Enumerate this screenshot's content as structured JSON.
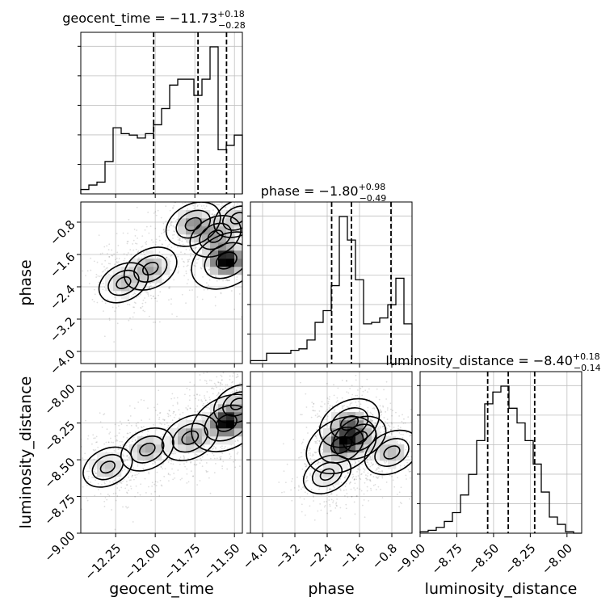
{
  "chart_data": {
    "type": "corner",
    "parameters": [
      {
        "key": "geocent_time",
        "label": "geocent_time",
        "range": [
          -12.47,
          -11.45
        ],
        "ticks": [
          -12.25,
          -12.0,
          -11.75,
          -11.5
        ],
        "tick_labels": [
          "−12.25",
          "−12.00",
          "−11.75",
          "−11.50"
        ],
        "title_main": "geocent_time = −11.73",
        "title_plus": "+0.18",
        "title_minus": "−0.28",
        "quantiles": [
          -12.01,
          -11.73,
          -11.55
        ]
      },
      {
        "key": "phase",
        "label": "phase",
        "range": [
          -4.3,
          -0.3
        ],
        "ticks": [
          -4.0,
          -3.2,
          -2.4,
          -1.6,
          -0.8
        ],
        "tick_labels": [
          "−4.0",
          "−3.2",
          "−2.4",
          "−1.6",
          "−0.8"
        ],
        "title_main": "phase = −1.80",
        "title_plus": "+0.98",
        "title_minus": "−0.49",
        "quantiles": [
          -2.29,
          -1.8,
          -0.82
        ]
      },
      {
        "key": "luminosity_distance",
        "label": "luminosity_distance",
        "range": [
          -9.0,
          -7.9
        ],
        "ticks": [
          -9.0,
          -8.75,
          -8.5,
          -8.25,
          -8.0
        ],
        "tick_labels": [
          "−9.00",
          "−8.75",
          "−8.50",
          "−8.25",
          "−8.00"
        ],
        "title_main": "luminosity_distance = −8.40",
        "title_plus": "+0.18",
        "title_minus": "−0.14",
        "quantiles": [
          -8.54,
          -8.4,
          -8.22
        ]
      }
    ],
    "histograms": [
      {
        "param": "geocent_time",
        "bins": 20,
        "counts": [
          0.03,
          0.06,
          0.08,
          0.22,
          0.45,
          0.41,
          0.4,
          0.38,
          0.41,
          0.47,
          0.58,
          0.74,
          0.78,
          0.78,
          0.67,
          0.78,
          1.0,
          0.3,
          0.33,
          0.4
        ]
      },
      {
        "param": "phase",
        "bins": 20,
        "counts": [
          0.02,
          0.02,
          0.07,
          0.07,
          0.07,
          0.09,
          0.1,
          0.16,
          0.28,
          0.36,
          0.53,
          1.0,
          0.84,
          0.57,
          0.27,
          0.28,
          0.31,
          0.4,
          0.58,
          0.27
        ]
      },
      {
        "param": "luminosity_distance",
        "bins": 20,
        "counts": [
          0.01,
          0.02,
          0.04,
          0.08,
          0.14,
          0.26,
          0.4,
          0.63,
          0.88,
          0.96,
          1.0,
          0.85,
          0.75,
          0.63,
          0.47,
          0.28,
          0.11,
          0.06,
          0.01,
          0.0
        ]
      }
    ],
    "contours_2d": [
      {
        "x": "geocent_time",
        "y": "phase",
        "density_peaks": [
          {
            "x": -11.55,
            "y": -1.75,
            "w": 1.0
          },
          {
            "x": -11.76,
            "y": -0.85,
            "w": 0.55
          },
          {
            "x": -11.62,
            "y": -1.15,
            "w": 0.45
          },
          {
            "x": -12.03,
            "y": -1.95,
            "w": 0.5
          },
          {
            "x": -12.2,
            "y": -2.3,
            "w": 0.4
          },
          {
            "x": -11.48,
            "y": -0.7,
            "w": 0.35
          }
        ]
      },
      {
        "x": "geocent_time",
        "y": "luminosity_distance",
        "density_peaks": [
          {
            "x": -11.55,
            "y": -8.25,
            "w": 1.0
          },
          {
            "x": -11.78,
            "y": -8.35,
            "w": 0.6
          },
          {
            "x": -12.05,
            "y": -8.43,
            "w": 0.5
          },
          {
            "x": -12.3,
            "y": -8.55,
            "w": 0.4
          },
          {
            "x": -11.48,
            "y": -8.12,
            "w": 0.35
          }
        ]
      },
      {
        "x": "phase",
        "y": "luminosity_distance",
        "density_peaks": [
          {
            "x": -2.05,
            "y": -8.4,
            "w": 1.0
          },
          {
            "x": -1.85,
            "y": -8.25,
            "w": 0.7
          },
          {
            "x": -1.6,
            "y": -8.35,
            "w": 0.5
          },
          {
            "x": -0.8,
            "y": -8.45,
            "w": 0.55
          },
          {
            "x": -2.4,
            "y": -8.6,
            "w": 0.35
          }
        ]
      }
    ],
    "grid": true,
    "quantile_line_style": "dashed"
  }
}
